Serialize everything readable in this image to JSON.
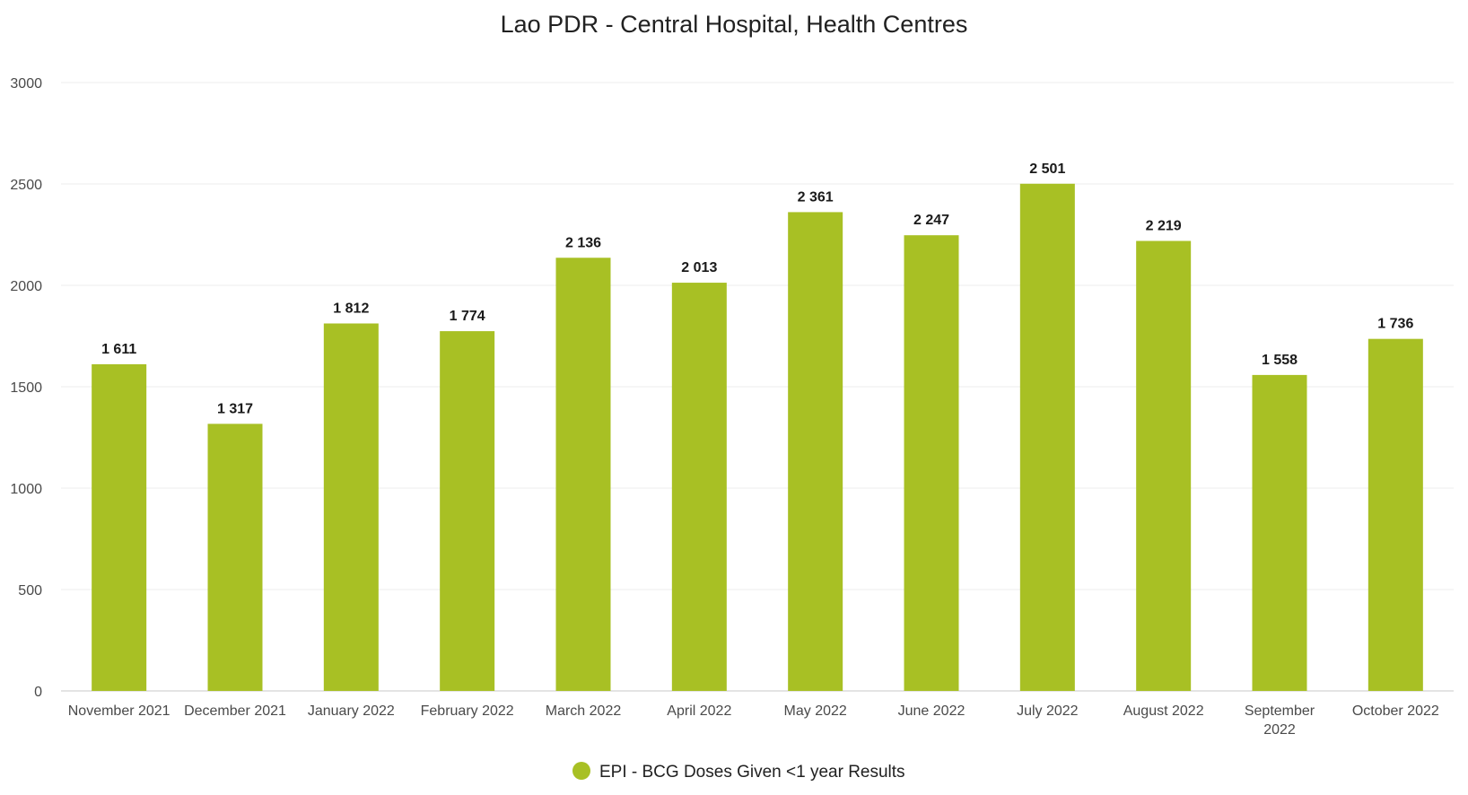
{
  "chart_data": {
    "type": "bar",
    "title": "Lao PDR - Central Hospital, Health Centres",
    "categories": [
      [
        "November 2021"
      ],
      [
        "December 2021"
      ],
      [
        "January 2022"
      ],
      [
        "February 2022"
      ],
      [
        "March 2022"
      ],
      [
        "April 2022"
      ],
      [
        "May 2022"
      ],
      [
        "June 2022"
      ],
      [
        "July 2022"
      ],
      [
        "August 2022"
      ],
      [
        "September",
        "2022"
      ],
      [
        "October 2022"
      ]
    ],
    "series": [
      {
        "name": "EPI - BCG Doses Given <1 year Results",
        "color": "#a8c024",
        "values": [
          1611,
          1317,
          1812,
          1774,
          2136,
          2013,
          2361,
          2247,
          2501,
          2219,
          1558,
          1736
        ],
        "labels": [
          "1 611",
          "1 317",
          "1 812",
          "1 774",
          "2 136",
          "2 013",
          "2 361",
          "2 247",
          "2 501",
          "2 219",
          "1 558",
          "1 736"
        ]
      }
    ],
    "y_ticks": [
      "0",
      "500",
      "1000",
      "1500",
      "2000",
      "2500",
      "3000"
    ],
    "ylim": [
      0,
      3000
    ],
    "xlabel": "",
    "ylabel": "",
    "grid": true,
    "legend_position": "bottom-center"
  }
}
